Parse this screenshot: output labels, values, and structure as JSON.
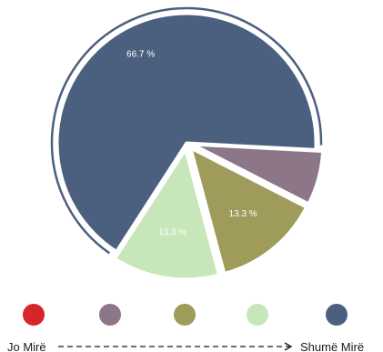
{
  "chart_data": {
    "type": "pie",
    "slices": [
      {
        "category": "Jo Mirë",
        "value": 0,
        "label": "",
        "color": "#d7262b"
      },
      {
        "category": "",
        "value": 6.7,
        "label": "",
        "color": "#8e7689"
      },
      {
        "category": "",
        "value": 13.3,
        "label": "13.3 %",
        "color": "#9e9b5b"
      },
      {
        "category": "",
        "value": 13.3,
        "label": "13.3 %",
        "color": "#c7e6b9"
      },
      {
        "category": "Shumë Mirë",
        "value": 66.7,
        "label": "66.7 %",
        "color": "#4b5f7f"
      }
    ],
    "legend": {
      "placement": "bottom",
      "low_label": "Jo Mirë",
      "high_label": "Shumë Mirë",
      "colors": [
        "#d7262b",
        "#8e7689",
        "#9e9b5b",
        "#c7e6b9",
        "#4b5f7f"
      ]
    }
  }
}
